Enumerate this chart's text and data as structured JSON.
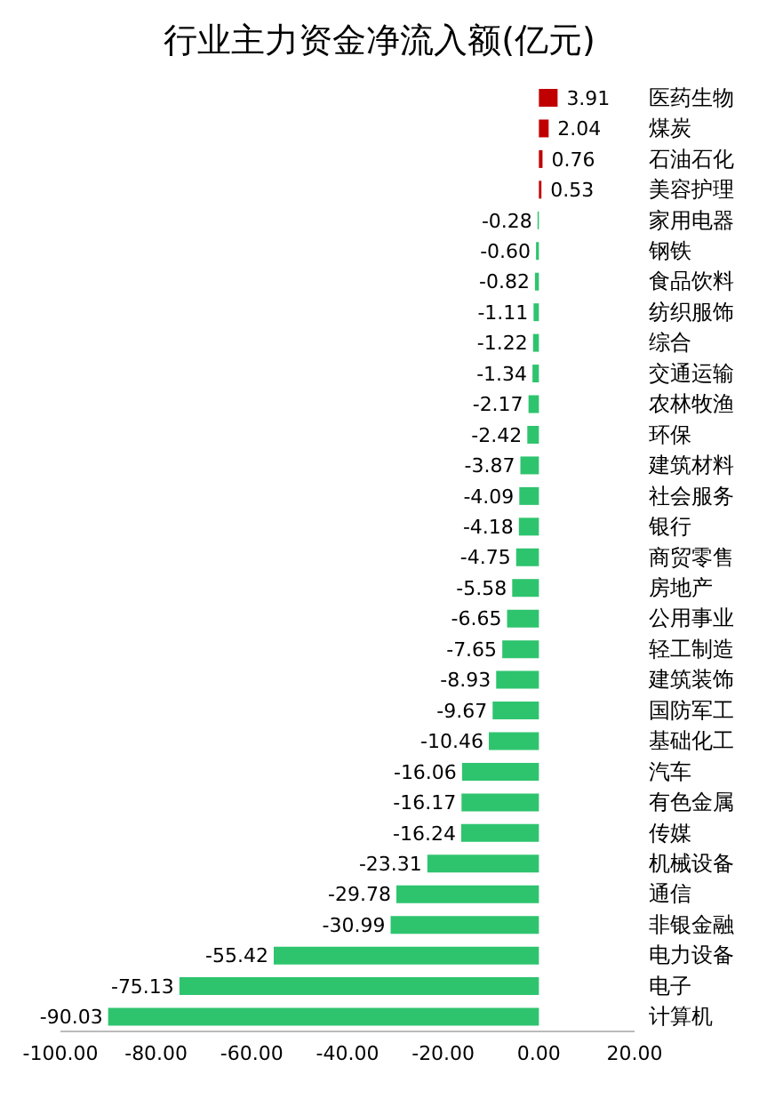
{
  "chart_data": {
    "type": "bar",
    "title": "行业主力资金净流入额(亿元)",
    "orientation": "horizontal",
    "legend": false,
    "grid": false,
    "categories": [
      "医药生物",
      "煤炭",
      "石油石化",
      "美容护理",
      "家用电器",
      "钢铁",
      "食品饮料",
      "纺织服饰",
      "综合",
      "交通运输",
      "农林牧渔",
      "环保",
      "建筑材料",
      "社会服务",
      "银行",
      "商贸零售",
      "房地产",
      "公用事业",
      "轻工制造",
      "建筑装饰",
      "国防军工",
      "基础化工",
      "汽车",
      "有色金属",
      "传媒",
      "机械设备",
      "通信",
      "非银金融",
      "电力设备",
      "电子",
      "计算机"
    ],
    "values": [
      3.91,
      2.04,
      0.76,
      0.53,
      -0.28,
      -0.6,
      -0.82,
      -1.11,
      -1.22,
      -1.34,
      -2.17,
      -2.42,
      -3.87,
      -4.09,
      -4.18,
      -4.75,
      -5.58,
      -6.65,
      -7.65,
      -8.93,
      -9.67,
      -10.46,
      -16.06,
      -16.17,
      -16.24,
      -23.31,
      -29.78,
      -30.99,
      -55.42,
      -75.13,
      -90.03
    ],
    "value_labels": [
      "3.91",
      "2.04",
      "0.76",
      "0.53",
      "-0.28",
      "-0.60",
      "-0.82",
      "-1.11",
      "-1.22",
      "-1.34",
      "-2.17",
      "-2.42",
      "-3.87",
      "-4.09",
      "-4.18",
      "-4.75",
      "-5.58",
      "-6.65",
      "-7.65",
      "-8.93",
      "-9.67",
      "-10.46",
      "-16.06",
      "-16.17",
      "-16.24",
      "-23.31",
      "-29.78",
      "-30.99",
      "-55.42",
      "-75.13",
      "-90.03"
    ],
    "colors": [
      "#c00000",
      "#c00000",
      "#c00000",
      "#c00000",
      "#2ec46e",
      "#2ec46e",
      "#2ec46e",
      "#2ec46e",
      "#2ec46e",
      "#2ec46e",
      "#2ec46e",
      "#2ec46e",
      "#2ec46e",
      "#2ec46e",
      "#2ec46e",
      "#2ec46e",
      "#2ec46e",
      "#2ec46e",
      "#2ec46e",
      "#2ec46e",
      "#2ec46e",
      "#2ec46e",
      "#2ec46e",
      "#2ec46e",
      "#2ec46e",
      "#2ec46e",
      "#2ec46e",
      "#2ec46e",
      "#2ec46e",
      "#2ec46e",
      "#2ec46e"
    ],
    "xlim": [
      -100,
      20
    ],
    "xticks": [
      {
        "value": -100,
        "label": "-100.00"
      },
      {
        "value": -80,
        "label": "-80.00"
      },
      {
        "value": -60,
        "label": "-60.00"
      },
      {
        "value": -40,
        "label": "-40.00"
      },
      {
        "value": -20,
        "label": "-20.00"
      },
      {
        "value": 0,
        "label": "0.00"
      },
      {
        "value": 20,
        "label": "20.00"
      }
    ]
  }
}
